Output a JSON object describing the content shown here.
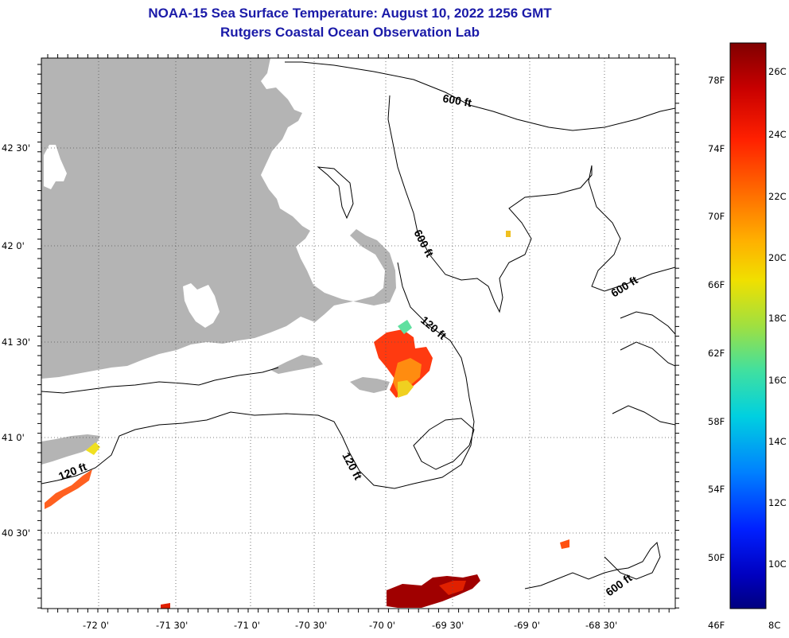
{
  "header": {
    "title": "NOAA-15 Sea Surface Temperature:  August 10, 2022 1256 GMT",
    "subtitle": "Rutgers Coastal Ocean Observation Lab"
  },
  "map": {
    "lat_labels": [
      "42 30'",
      "42 0'",
      "41 30'",
      "41 0'",
      "40 30'"
    ],
    "lon_labels": [
      "-72 0'",
      "-71 30'",
      "-71 0'",
      "-70 30'",
      "-70 0'",
      "-69 30'",
      "-69 0'",
      "-68 30'"
    ],
    "contour_labels": [
      "600 ft",
      "600 ft",
      "600 ft",
      "600 ft",
      "120 ft",
      "120 ft",
      "120 ft"
    ],
    "colors": {
      "land": "#b4b4b4",
      "ocean": "#ffffff",
      "grid": "#555555"
    }
  },
  "colorbar": {
    "fahrenheit_labels": [
      "78F",
      "74F",
      "70F",
      "66F",
      "62F",
      "58F",
      "54F",
      "50F",
      "46F"
    ],
    "celsius_labels": [
      "26C",
      "24C",
      "22C",
      "20C",
      "18C",
      "16C",
      "14C",
      "12C",
      "10C",
      "8C"
    ],
    "gradient": [
      "#800000",
      "#c80000",
      "#ff2000",
      "#ff7000",
      "#ffb000",
      "#f0e000",
      "#a0e040",
      "#40e0a0",
      "#00d0e0",
      "#0080ff",
      "#0020ff",
      "#0000c0",
      "#00007f"
    ]
  }
}
